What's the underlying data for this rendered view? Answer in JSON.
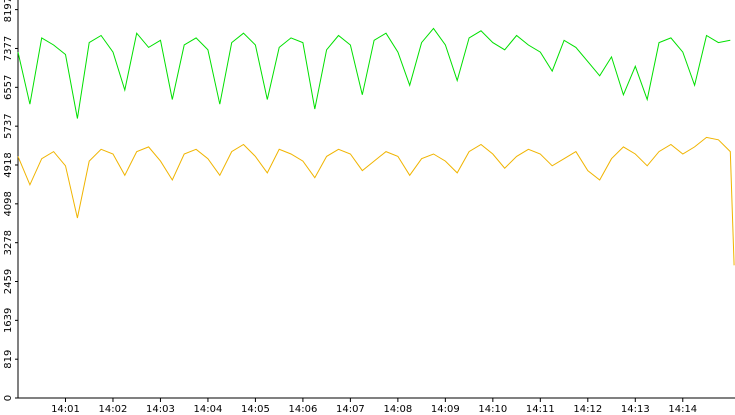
{
  "chart_data": {
    "type": "line",
    "x": [
      0,
      0.25,
      0.5,
      0.75,
      1.0,
      1.25,
      1.5,
      1.75,
      2.0,
      2.25,
      2.5,
      2.75,
      3.0,
      3.25,
      3.5,
      3.75,
      4.0,
      4.25,
      4.5,
      4.75,
      5.0,
      5.25,
      5.5,
      5.75,
      6.0,
      6.25,
      6.5,
      6.75,
      7.0,
      7.25,
      7.5,
      7.75,
      8.0,
      8.25,
      8.5,
      8.75,
      9.0,
      9.25,
      9.5,
      9.75,
      10.0,
      10.25,
      10.5,
      10.75,
      11.0,
      11.25,
      11.5,
      11.75,
      12.0,
      12.25,
      12.5,
      12.75,
      13.0,
      13.25,
      13.5,
      13.75,
      14.0,
      14.25,
      14.5,
      14.75,
      15.0,
      15.08
    ],
    "series": [
      {
        "name": "green",
        "color": "#00e000",
        "values": [
          7300,
          6200,
          7600,
          7450,
          7250,
          5900,
          7500,
          7650,
          7300,
          6500,
          7700,
          7400,
          7550,
          6300,
          7450,
          7600,
          7350,
          6200,
          7500,
          7700,
          7450,
          6300,
          7400,
          7600,
          7500,
          6100,
          7350,
          7650,
          7450,
          6400,
          7550,
          7700,
          7300,
          6600,
          7500,
          7800,
          7450,
          6700,
          7600,
          7750,
          7500,
          7350,
          7650,
          7450,
          7300,
          6900,
          7550,
          7400,
          7100,
          6800,
          7200,
          6400,
          7000,
          6300,
          7500,
          7600,
          7300,
          6600,
          7650,
          7500,
          7550,
          null
        ]
      },
      {
        "name": "orange",
        "color": "#f0b400",
        "values": [
          5100,
          4500,
          5050,
          5200,
          4900,
          3800,
          5000,
          5250,
          5150,
          4700,
          5200,
          5300,
          5000,
          4600,
          5150,
          5250,
          5050,
          4700,
          5200,
          5350,
          5100,
          4750,
          5250,
          5150,
          5000,
          4650,
          5100,
          5250,
          5150,
          4800,
          5000,
          5200,
          5100,
          4700,
          5050,
          5150,
          5000,
          4750,
          5200,
          5350,
          5150,
          4850,
          5100,
          5250,
          5150,
          4900,
          5050,
          5200,
          4800,
          4600,
          5050,
          5300,
          5150,
          4900,
          5200,
          5350,
          5150,
          5300,
          5500,
          5450,
          5200,
          2800
        ]
      }
    ],
    "xlim": [
      0,
      15.1
    ],
    "ylim": [
      0,
      8400
    ],
    "xticks": [
      {
        "value": 1,
        "label": "14:01"
      },
      {
        "value": 2,
        "label": "14:02"
      },
      {
        "value": 3,
        "label": "14:03"
      },
      {
        "value": 4,
        "label": "14:04"
      },
      {
        "value": 5,
        "label": "14:05"
      },
      {
        "value": 6,
        "label": "14:06"
      },
      {
        "value": 7,
        "label": "14:07"
      },
      {
        "value": 8,
        "label": "14:08"
      },
      {
        "value": 9,
        "label": "14:09"
      },
      {
        "value": 10,
        "label": "14:10"
      },
      {
        "value": 11,
        "label": "14:11"
      },
      {
        "value": 12,
        "label": "14:12"
      },
      {
        "value": 13,
        "label": "14:13"
      },
      {
        "value": 14,
        "label": "14:14"
      }
    ],
    "yticks": [
      0,
      819,
      1639,
      2459,
      3278,
      4098,
      4918,
      5737,
      6557,
      7377,
      8197
    ]
  }
}
